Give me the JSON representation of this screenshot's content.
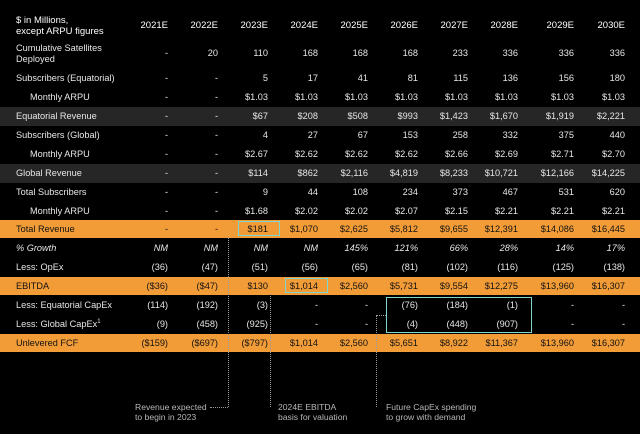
{
  "header": {
    "units_line1": "$ in Millions,",
    "units_line2": "except ARPU figures",
    "years": [
      "2021E",
      "2022E",
      "2023E",
      "2024E",
      "2025E",
      "2026E",
      "2027E",
      "2028E",
      "2029E",
      "2030E"
    ]
  },
  "rows": [
    {
      "label": "Cumulative Satellites",
      "label2": "Deployed",
      "values": [
        "-",
        "20",
        "110",
        "168",
        "168",
        "168",
        "233",
        "336",
        "336",
        "336"
      ]
    },
    {
      "label": "Subscribers (Equatorial)",
      "values": [
        "-",
        "-",
        "5",
        "17",
        "41",
        "81",
        "115",
        "136",
        "156",
        "180"
      ]
    },
    {
      "label": "Monthly ARPU",
      "values": [
        "-",
        "-",
        "$1.03",
        "$1.03",
        "$1.03",
        "$1.03",
        "$1.03",
        "$1.03",
        "$1.03",
        "$1.03"
      ]
    },
    {
      "label": "Equatorial Revenue",
      "values": [
        "-",
        "-",
        "$67",
        "$208",
        "$508",
        "$993",
        "$1,423",
        "$1,670",
        "$1,919",
        "$2,221"
      ]
    },
    {
      "label": "Subscribers (Global)",
      "values": [
        "-",
        "-",
        "4",
        "27",
        "67",
        "153",
        "258",
        "332",
        "375",
        "440"
      ]
    },
    {
      "label": "Monthly ARPU",
      "values": [
        "-",
        "-",
        "$2.67",
        "$2.62",
        "$2.62",
        "$2.62",
        "$2.66",
        "$2.69",
        "$2.71",
        "$2.70"
      ]
    },
    {
      "label": "Global Revenue",
      "values": [
        "-",
        "-",
        "$114",
        "$862",
        "$2,116",
        "$4,819",
        "$8,233",
        "$10,721",
        "$12,166",
        "$14,225"
      ]
    },
    {
      "label": "Total Subscribers",
      "values": [
        "-",
        "-",
        "9",
        "44",
        "108",
        "234",
        "373",
        "467",
        "531",
        "620"
      ]
    },
    {
      "label": "Monthly ARPU",
      "values": [
        "-",
        "-",
        "$1.68",
        "$2.02",
        "$2.02",
        "$2.07",
        "$2.15",
        "$2.21",
        "$2.21",
        "$2.21"
      ]
    },
    {
      "label": "Total Revenue",
      "values": [
        "-",
        "-",
        "$181",
        "$1,070",
        "$2,625",
        "$5,812",
        "$9,655",
        "$12,391",
        "$14,086",
        "$16,445"
      ]
    },
    {
      "label": "% Growth",
      "values": [
        "NM",
        "NM",
        "NM",
        "NM",
        "145%",
        "121%",
        "66%",
        "28%",
        "14%",
        "17%"
      ]
    },
    {
      "label": "Less: OpEx",
      "values": [
        "(36)",
        "(47)",
        "(51)",
        "(56)",
        "(65)",
        "(81)",
        "(102)",
        "(116)",
        "(125)",
        "(138)"
      ]
    },
    {
      "label": "EBITDA",
      "values": [
        "($36)",
        "($47)",
        "$130",
        "$1,014",
        "$2,560",
        "$5,731",
        "$9,554",
        "$12,275",
        "$13,960",
        "$16,307"
      ]
    },
    {
      "label": "Less: Equatorial CapEx",
      "values": [
        "(114)",
        "(192)",
        "(3)",
        "-",
        "-",
        "(76)",
        "(184)",
        "(1)",
        "-",
        "-"
      ]
    },
    {
      "label": "Less: Global CapEx",
      "sup": "1",
      "values": [
        "(9)",
        "(458)",
        "(925)",
        "-",
        "-",
        "(4)",
        "(448)",
        "(907)",
        "-",
        "-"
      ]
    },
    {
      "label": "Unlevered FCF",
      "values": [
        "($159)",
        "($697)",
        "($797)",
        "$1,014",
        "$2,560",
        "$5,651",
        "$8,922",
        "$11,367",
        "$13,960",
        "$16,307"
      ]
    }
  ],
  "notes": {
    "n1_line1": "Revenue expected",
    "n1_line2": "to begin in 2023",
    "n2_line1": "2024E EBITDA",
    "n2_line2": "basis for valuation",
    "n3_line1": "Future CapEx spending",
    "n3_line2": "to grow with demand"
  },
  "colors": {
    "accent_orange": "#f29c38",
    "highlight_teal": "#7fd6cf",
    "dark_band": "#262626"
  }
}
